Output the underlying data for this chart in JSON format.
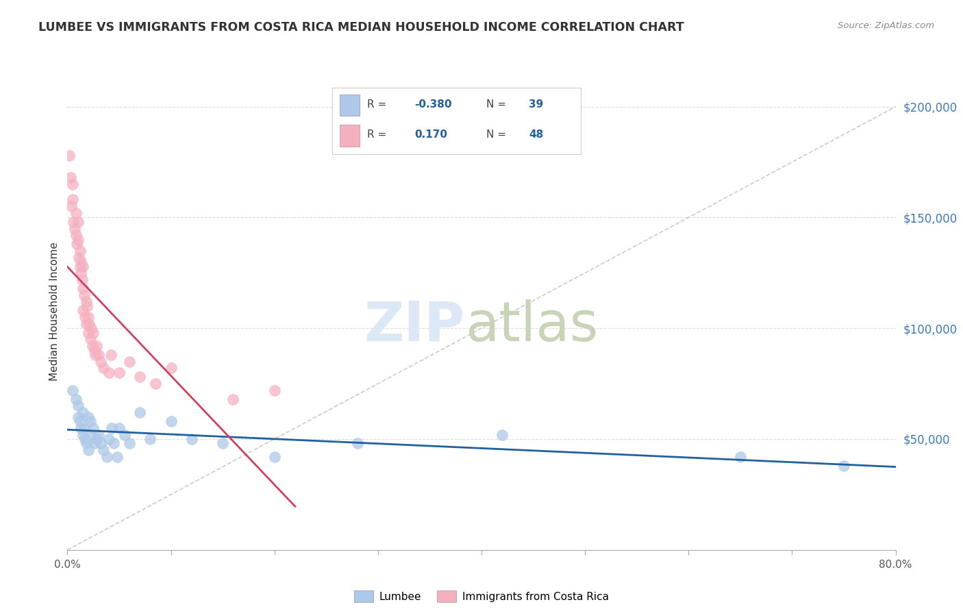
{
  "title": "LUMBEE VS IMMIGRANTS FROM COSTA RICA MEDIAN HOUSEHOLD INCOME CORRELATION CHART",
  "source": "Source: ZipAtlas.com",
  "ylabel": "Median Household Income",
  "yaxis_labels": [
    "$50,000",
    "$100,000",
    "$150,000",
    "$200,000"
  ],
  "yaxis_values": [
    50000,
    100000,
    150000,
    200000
  ],
  "xmin": 0.0,
  "xmax": 0.8,
  "ymin": 0,
  "ymax": 215000,
  "legend_r_blue": "-0.380",
  "legend_n_blue": "39",
  "legend_r_pink": "0.170",
  "legend_n_pink": "48",
  "legend_label_blue": "Lumbee",
  "legend_label_pink": "Immigrants from Costa Rica",
  "blue_color": "#adc8e8",
  "pink_color": "#f5b0c0",
  "blue_line_color": "#2060a0",
  "pink_line_color": "#d04060",
  "blue_scatter_x": [
    0.005,
    0.008,
    0.01,
    0.01,
    0.012,
    0.013,
    0.015,
    0.015,
    0.016,
    0.017,
    0.018,
    0.02,
    0.02,
    0.022,
    0.023,
    0.025,
    0.026,
    0.028,
    0.03,
    0.032,
    0.035,
    0.038,
    0.04,
    0.043,
    0.045,
    0.048,
    0.05,
    0.055,
    0.06,
    0.07,
    0.08,
    0.1,
    0.12,
    0.15,
    0.2,
    0.28,
    0.42,
    0.65,
    0.75
  ],
  "blue_scatter_y": [
    72000,
    68000,
    65000,
    60000,
    58000,
    55000,
    62000,
    52000,
    55000,
    50000,
    48000,
    60000,
    45000,
    58000,
    52000,
    55000,
    48000,
    50000,
    52000,
    48000,
    45000,
    42000,
    50000,
    55000,
    48000,
    42000,
    55000,
    52000,
    48000,
    62000,
    50000,
    58000,
    50000,
    48000,
    42000,
    48000,
    52000,
    42000,
    38000
  ],
  "pink_scatter_x": [
    0.002,
    0.003,
    0.004,
    0.005,
    0.005,
    0.006,
    0.007,
    0.008,
    0.008,
    0.009,
    0.01,
    0.01,
    0.011,
    0.012,
    0.012,
    0.013,
    0.013,
    0.014,
    0.015,
    0.015,
    0.015,
    0.016,
    0.017,
    0.018,
    0.018,
    0.019,
    0.02,
    0.02,
    0.021,
    0.022,
    0.023,
    0.024,
    0.025,
    0.026,
    0.027,
    0.028,
    0.03,
    0.032,
    0.035,
    0.04,
    0.042,
    0.05,
    0.06,
    0.07,
    0.085,
    0.1,
    0.16,
    0.2
  ],
  "pink_scatter_y": [
    178000,
    168000,
    155000,
    165000,
    158000,
    148000,
    145000,
    152000,
    142000,
    138000,
    148000,
    140000,
    132000,
    128000,
    135000,
    125000,
    130000,
    122000,
    128000,
    118000,
    108000,
    115000,
    105000,
    112000,
    102000,
    110000,
    105000,
    98000,
    102000,
    95000,
    100000,
    92000,
    98000,
    90000,
    88000,
    92000,
    88000,
    85000,
    82000,
    80000,
    88000,
    80000,
    85000,
    78000,
    75000,
    82000,
    68000,
    72000
  ]
}
